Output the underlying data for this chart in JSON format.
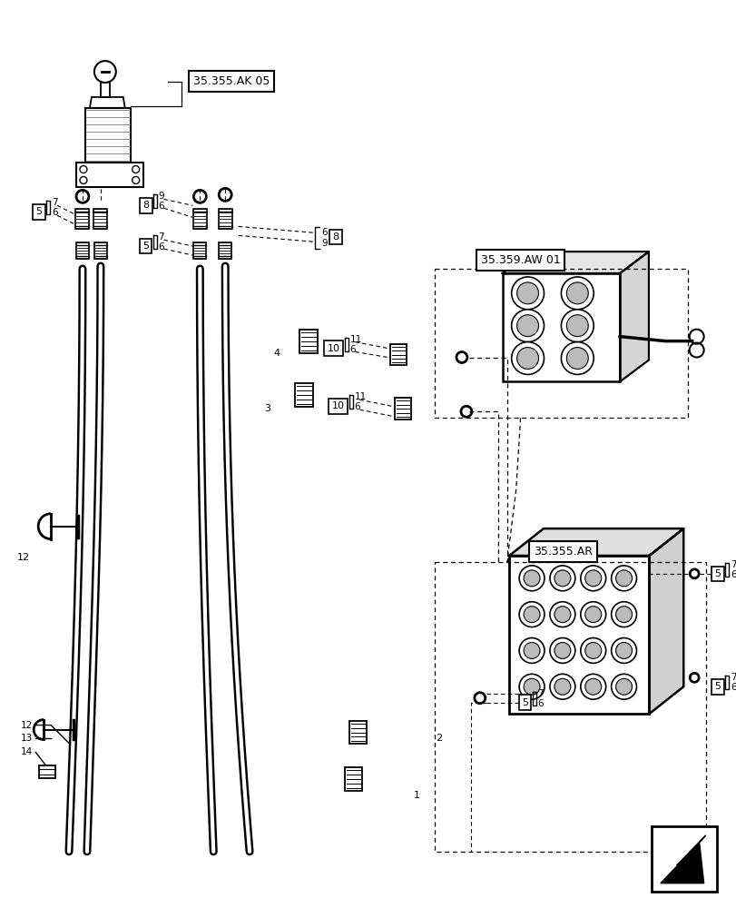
{
  "bg_color": "#ffffff",
  "fig_width": 8.12,
  "fig_height": 10.0,
  "dpi": 100,
  "labels": {
    "ref_ak05": "35.355.AK 05",
    "ref_aw01": "35.359.AW 01",
    "ref_ar": "35.355.AR"
  },
  "hose_lw": 4.5,
  "hose_color": "#1a1a1a",
  "line_color": "#000000"
}
